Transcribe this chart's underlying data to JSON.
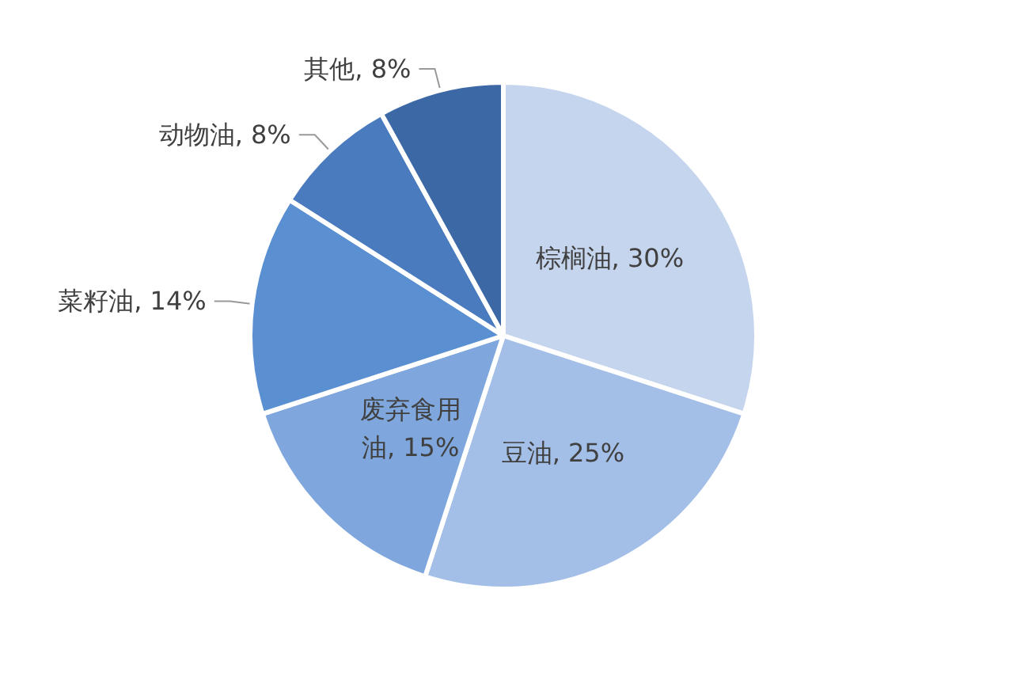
{
  "chart_data": {
    "type": "pie",
    "categories": [
      "棕榈油",
      "豆油",
      "废弃食用油",
      "菜籽油",
      "动物油",
      "其他"
    ],
    "values": [
      30,
      25,
      15,
      14,
      8,
      8
    ],
    "value_labels": [
      "30%",
      "25%",
      "15%",
      "14%",
      "8%",
      "8%"
    ],
    "colors": [
      "#c5d5ee",
      "#a4bfe7",
      "#7fa7dd",
      "#5a90d2",
      "#4a7bbf",
      "#3d68a6"
    ]
  }
}
